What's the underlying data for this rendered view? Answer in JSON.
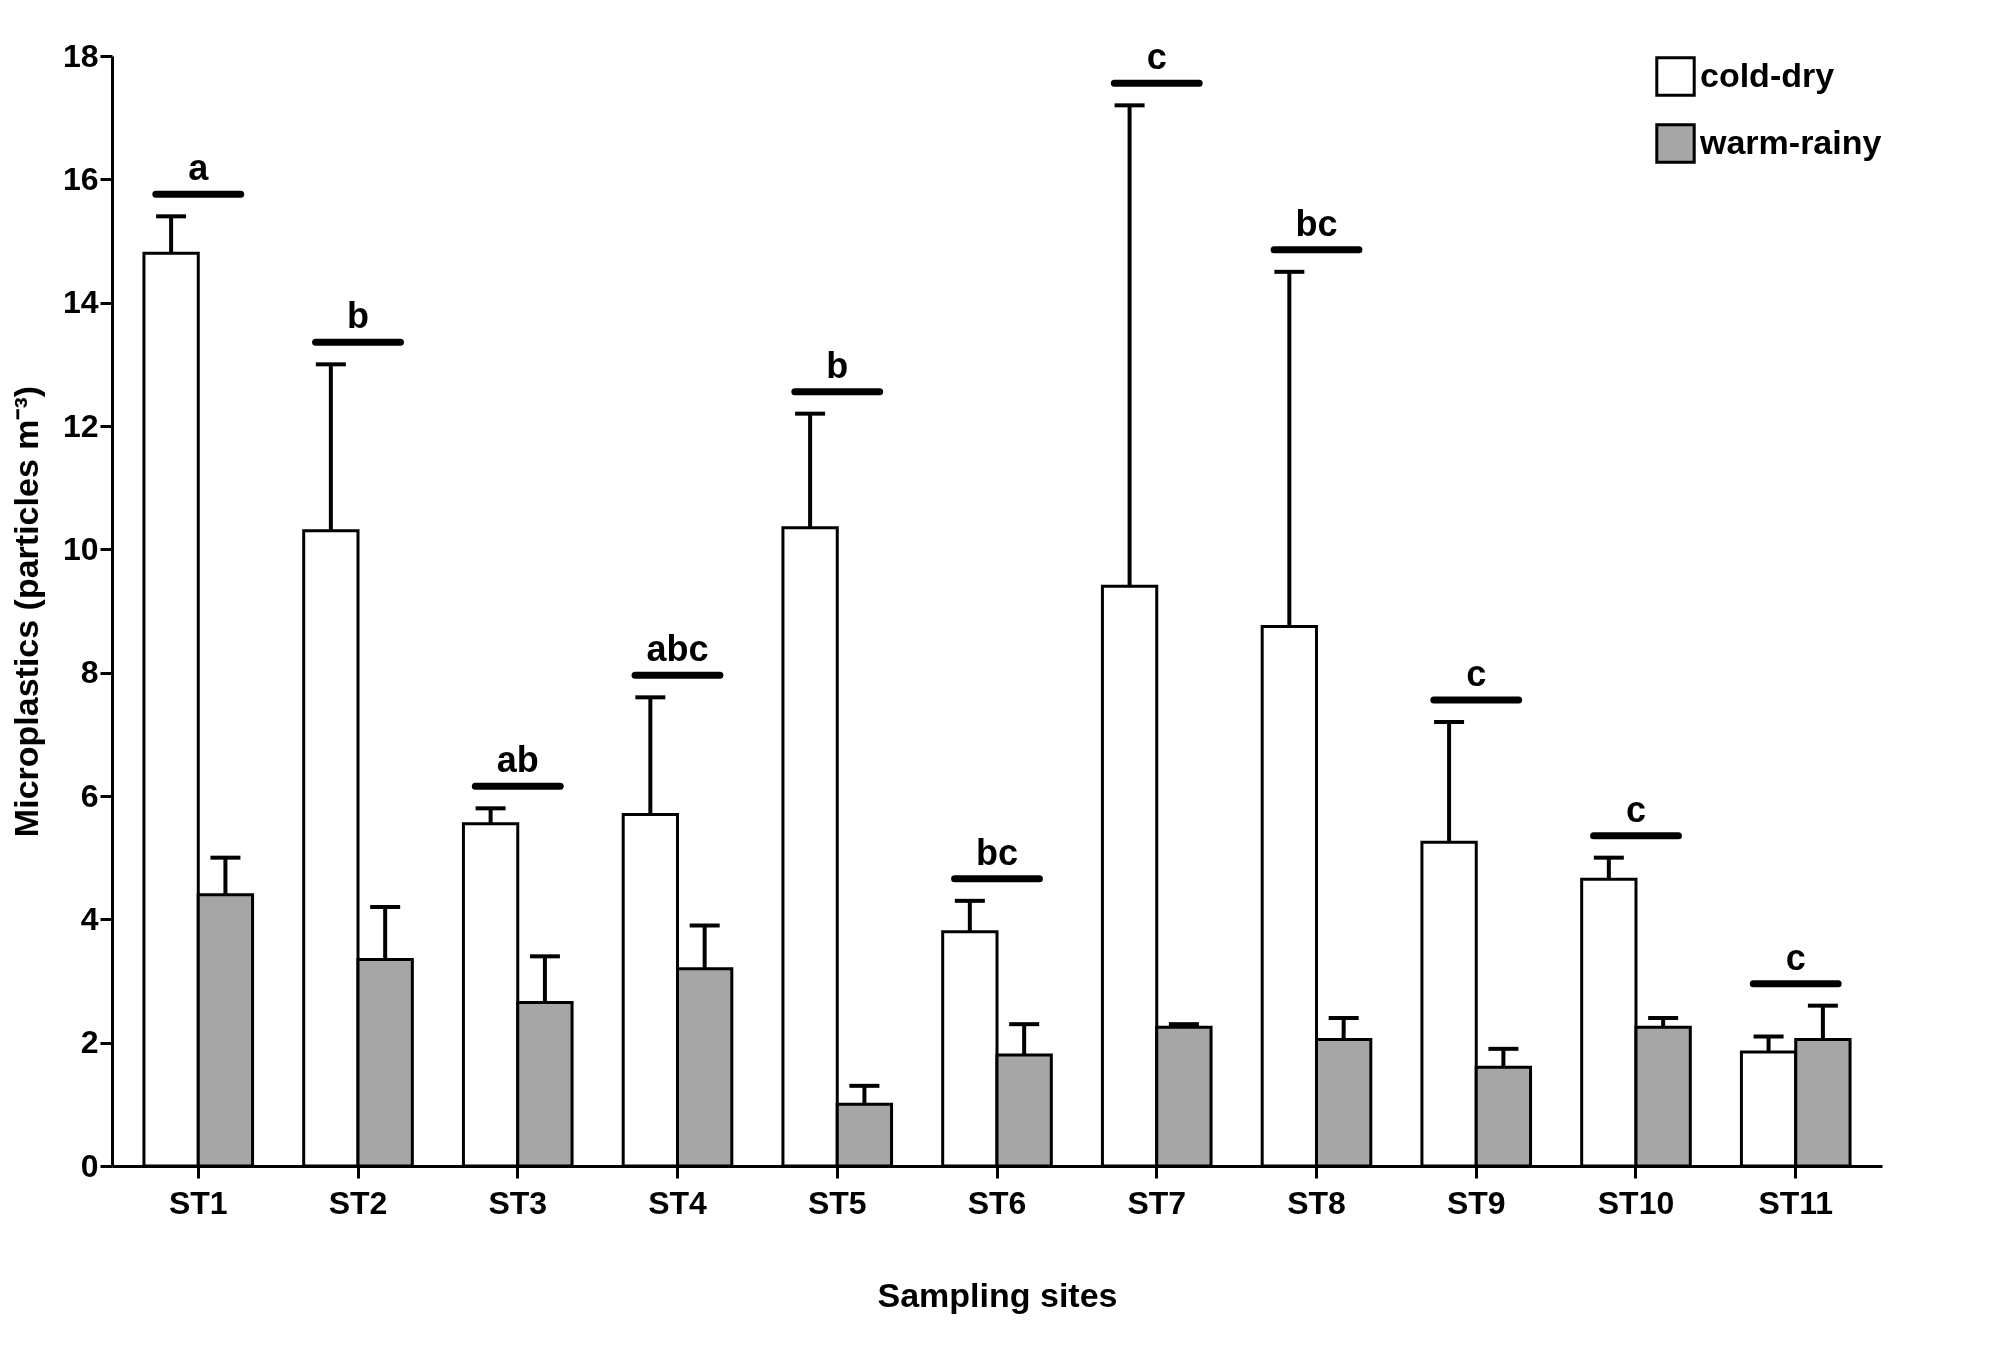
{
  "chart_data": {
    "type": "bar",
    "xlabel": "Sampling sites",
    "ylabel": "Microplastics (particles m⁻³)",
    "categories": [
      "ST1",
      "ST2",
      "ST3",
      "ST4",
      "ST5",
      "ST6",
      "ST7",
      "ST8",
      "ST9",
      "ST10",
      "ST11"
    ],
    "series": [
      {
        "name": "cold-dry",
        "color": "#ffffff",
        "values": [
          14.8,
          10.3,
          5.55,
          5.7,
          10.35,
          3.8,
          9.4,
          8.75,
          5.25,
          4.65,
          1.85
        ],
        "errors": [
          [
            14.8,
            15.4
          ],
          [
            10.3,
            13.0
          ],
          [
            5.55,
            5.8
          ],
          [
            5.7,
            7.6
          ],
          [
            10.35,
            12.2
          ],
          [
            3.8,
            4.3
          ],
          [
            9.4,
            17.2
          ],
          [
            8.75,
            14.5
          ],
          [
            5.25,
            7.2
          ],
          [
            4.65,
            5.0
          ],
          [
            1.85,
            2.1
          ]
        ]
      },
      {
        "name": "warm-rainy",
        "color": "#a6a6a6",
        "values": [
          4.4,
          3.35,
          2.65,
          3.2,
          1.0,
          1.8,
          2.25,
          2.05,
          1.6,
          2.25,
          2.05
        ],
        "errors": [
          [
            4.4,
            5.0
          ],
          [
            3.35,
            4.2
          ],
          [
            2.65,
            3.4
          ],
          [
            3.2,
            3.9
          ],
          [
            1.0,
            1.3
          ],
          [
            1.8,
            2.3
          ],
          [
            2.25,
            2.3
          ],
          [
            2.05,
            2.4
          ],
          [
            1.6,
            1.9
          ],
          [
            2.25,
            2.4
          ],
          [
            2.05,
            2.6
          ]
        ]
      }
    ],
    "ylim": [
      0,
      18
    ],
    "yticks": [
      0,
      2,
      4,
      6,
      8,
      10,
      12,
      14,
      16,
      18
    ],
    "grid": false,
    "legend": "top right",
    "annotations": [
      "a",
      "b",
      "ab",
      "abc",
      "b",
      "bc",
      "c",
      "bc",
      "c",
      "c",
      "c"
    ]
  }
}
